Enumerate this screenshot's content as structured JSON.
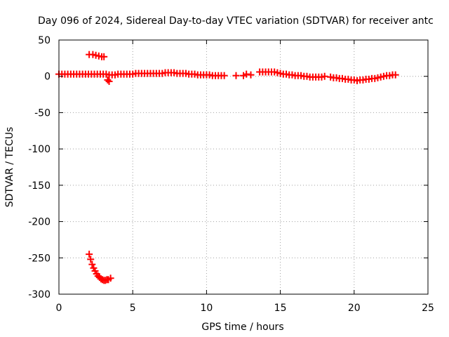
{
  "chart_data": {
    "type": "scatter",
    "title": "Day 096 of 2024, Sidereal Day-to-day VTEC variation (SDTVAR) for receiver antc",
    "xlabel": "GPS time / hours",
    "ylabel": "SDTVAR / TECUs",
    "xlim": [
      0,
      25
    ],
    "ylim": [
      -300,
      50
    ],
    "xticks": [
      0,
      5,
      10,
      15,
      20,
      25
    ],
    "yticks": [
      50,
      0,
      -50,
      -100,
      -150,
      -200,
      -250,
      -300
    ],
    "grid": true,
    "marker": "plus",
    "color": "#ff0000",
    "series": [
      {
        "x": [
          0.0,
          0.2,
          0.4,
          0.6,
          0.8,
          1.0,
          1.2,
          1.4,
          1.6,
          1.8,
          2.0,
          2.2,
          2.4,
          2.6,
          2.8,
          3.0,
          3.2,
          3.4,
          3.6,
          3.8,
          4.0,
          4.2,
          4.4,
          4.6,
          4.8,
          5.0,
          5.2,
          5.4,
          5.6,
          5.8,
          6.0,
          6.2,
          6.4,
          6.6,
          6.8,
          7.0,
          7.2,
          7.4,
          7.6,
          7.8,
          8.0,
          8.2,
          8.4,
          8.6,
          8.8,
          9.0,
          9.2,
          9.4,
          9.6,
          9.8,
          10.0,
          10.2,
          10.4,
          10.6,
          10.8,
          11.0,
          11.2,
          12.0,
          12.5,
          12.7,
          13.0,
          13.6,
          13.8,
          14.0,
          14.2,
          14.4,
          14.6,
          14.8,
          15.0,
          15.2,
          15.4,
          15.6,
          15.8,
          16.0,
          16.2,
          16.4,
          16.6,
          16.8,
          17.0,
          17.2,
          17.4,
          17.6,
          17.8,
          18.0,
          18.4,
          18.6,
          18.8,
          19.0,
          19.2,
          19.4,
          19.6,
          19.8,
          20.0,
          20.2,
          20.4,
          20.6,
          20.8,
          21.0,
          21.2,
          21.4,
          21.6,
          21.8,
          22.0,
          22.2,
          22.4,
          22.6,
          22.8,
          2.05,
          2.3,
          2.5,
          2.7,
          2.9,
          3.05,
          3.3,
          3.4,
          2.05,
          2.15,
          2.25,
          2.35,
          2.45,
          2.55,
          2.65,
          2.75,
          2.85,
          2.95,
          3.05,
          3.15,
          3.25,
          3.35,
          3.5
        ],
        "y": [
          3,
          3,
          3,
          3,
          3,
          3,
          3,
          3,
          3,
          3,
          3,
          3,
          3,
          3,
          3,
          3,
          3,
          2,
          2,
          2,
          3,
          3,
          3,
          3,
          3,
          3,
          4,
          4,
          4,
          4,
          4,
          4,
          4,
          4,
          4,
          4,
          5,
          5,
          5,
          5,
          4,
          4,
          4,
          4,
          3,
          3,
          3,
          2,
          2,
          2,
          2,
          2,
          1,
          1,
          1,
          1,
          1,
          1,
          1,
          3,
          2,
          6,
          6,
          6,
          6,
          6,
          6,
          5,
          4,
          3,
          3,
          2,
          2,
          1,
          1,
          1,
          0,
          0,
          -1,
          -1,
          -1,
          -1,
          -1,
          0,
          -1,
          -2,
          -2,
          -3,
          -3,
          -4,
          -4,
          -5,
          -5,
          -6,
          -5,
          -5,
          -4,
          -4,
          -3,
          -3,
          -2,
          -1,
          0,
          1,
          1,
          2,
          2,
          30,
          30,
          29,
          28,
          27,
          27,
          -5,
          -7,
          -245,
          -252,
          -259,
          -264,
          -268,
          -272,
          -275,
          -277,
          -279,
          -280,
          -281,
          -281,
          -280,
          -280,
          -278
        ]
      }
    ]
  }
}
